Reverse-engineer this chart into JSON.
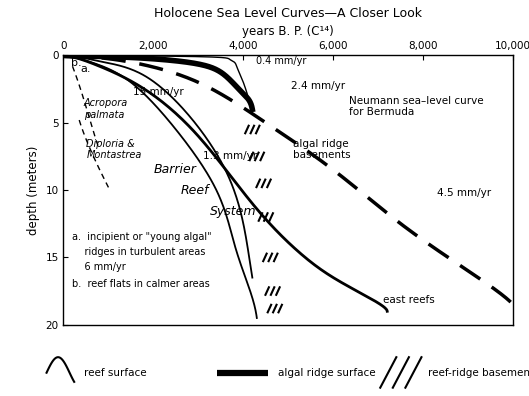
{
  "title": "Holocene Sea Level Curves—A Closer Look",
  "xlabel": "years B. P. (C¹⁴)",
  "ylabel": "depth (meters)",
  "xlim": [
    0,
    10000
  ],
  "ylim": [
    20,
    0
  ],
  "xticks": [
    0,
    2000,
    4000,
    6000,
    8000,
    10000
  ],
  "xticklabels": [
    "0",
    "2,000",
    "4,000",
    "6,000",
    "8,000",
    "10,000"
  ],
  "yticks": [
    0,
    5,
    10,
    15,
    20
  ],
  "curve_a_x": [
    0,
    100,
    300,
    700,
    1500,
    2500,
    3400,
    3800,
    4100,
    4300
  ],
  "curve_a_y": [
    0,
    0.05,
    0.2,
    0.6,
    2.0,
    5.5,
    10.0,
    14.0,
    17.0,
    19.5
  ],
  "curve_b_x": [
    0,
    150,
    400,
    900,
    1800,
    2800,
    3600,
    4000,
    4200
  ],
  "curve_b_y": [
    0,
    0.04,
    0.15,
    0.5,
    1.5,
    4.5,
    8.5,
    12.5,
    16.5
  ],
  "barrier_x": [
    0,
    300,
    800,
    1800,
    3000,
    4200,
    5200,
    6000,
    6800,
    7200
  ],
  "barrier_y": [
    0,
    0.2,
    0.8,
    2.5,
    6.0,
    11.0,
    14.5,
    16.5,
    18.0,
    19.0
  ],
  "algal_ridge_x": [
    0,
    500,
    1500,
    2500,
    3200,
    3600,
    3900,
    4100,
    4200
  ],
  "algal_ridge_y": [
    0,
    0.05,
    0.15,
    0.4,
    0.8,
    1.5,
    2.5,
    3.2,
    4.0
  ],
  "thin04_x": [
    0,
    1000,
    2500,
    3500,
    3700,
    3800,
    3850,
    3900,
    4000,
    4100,
    4200
  ],
  "thin04_y": [
    0,
    0.02,
    0.06,
    0.15,
    0.3,
    0.5,
    0.8,
    1.2,
    2.0,
    3.0,
    4.0
  ],
  "neumann_x": [
    0,
    500,
    1500,
    3000,
    4500,
    6000,
    7500,
    9000,
    10000
  ],
  "neumann_y": [
    0,
    0.1,
    0.5,
    2.0,
    5.0,
    8.5,
    12.5,
    16.0,
    18.5
  ],
  "acropora_x": [
    200,
    350,
    500,
    650,
    780
  ],
  "acropora_y": [
    0.8,
    2.2,
    3.8,
    5.5,
    6.8
  ],
  "diploria_x": [
    350,
    500,
    680,
    850,
    1000
  ],
  "diploria_y": [
    4.8,
    6.2,
    7.6,
    8.8,
    9.8
  ],
  "hash_algal": [
    [
      4200,
      5.5
    ],
    [
      4300,
      7.5
    ],
    [
      4450,
      9.5
    ],
    [
      4500,
      12.0
    ],
    [
      4600,
      15.0
    ],
    [
      4650,
      17.5
    ]
  ],
  "hash_east": [
    [
      4700,
      18.8
    ]
  ],
  "background_color": "white",
  "figsize": [
    5.29,
    3.96
  ],
  "dpi": 100
}
